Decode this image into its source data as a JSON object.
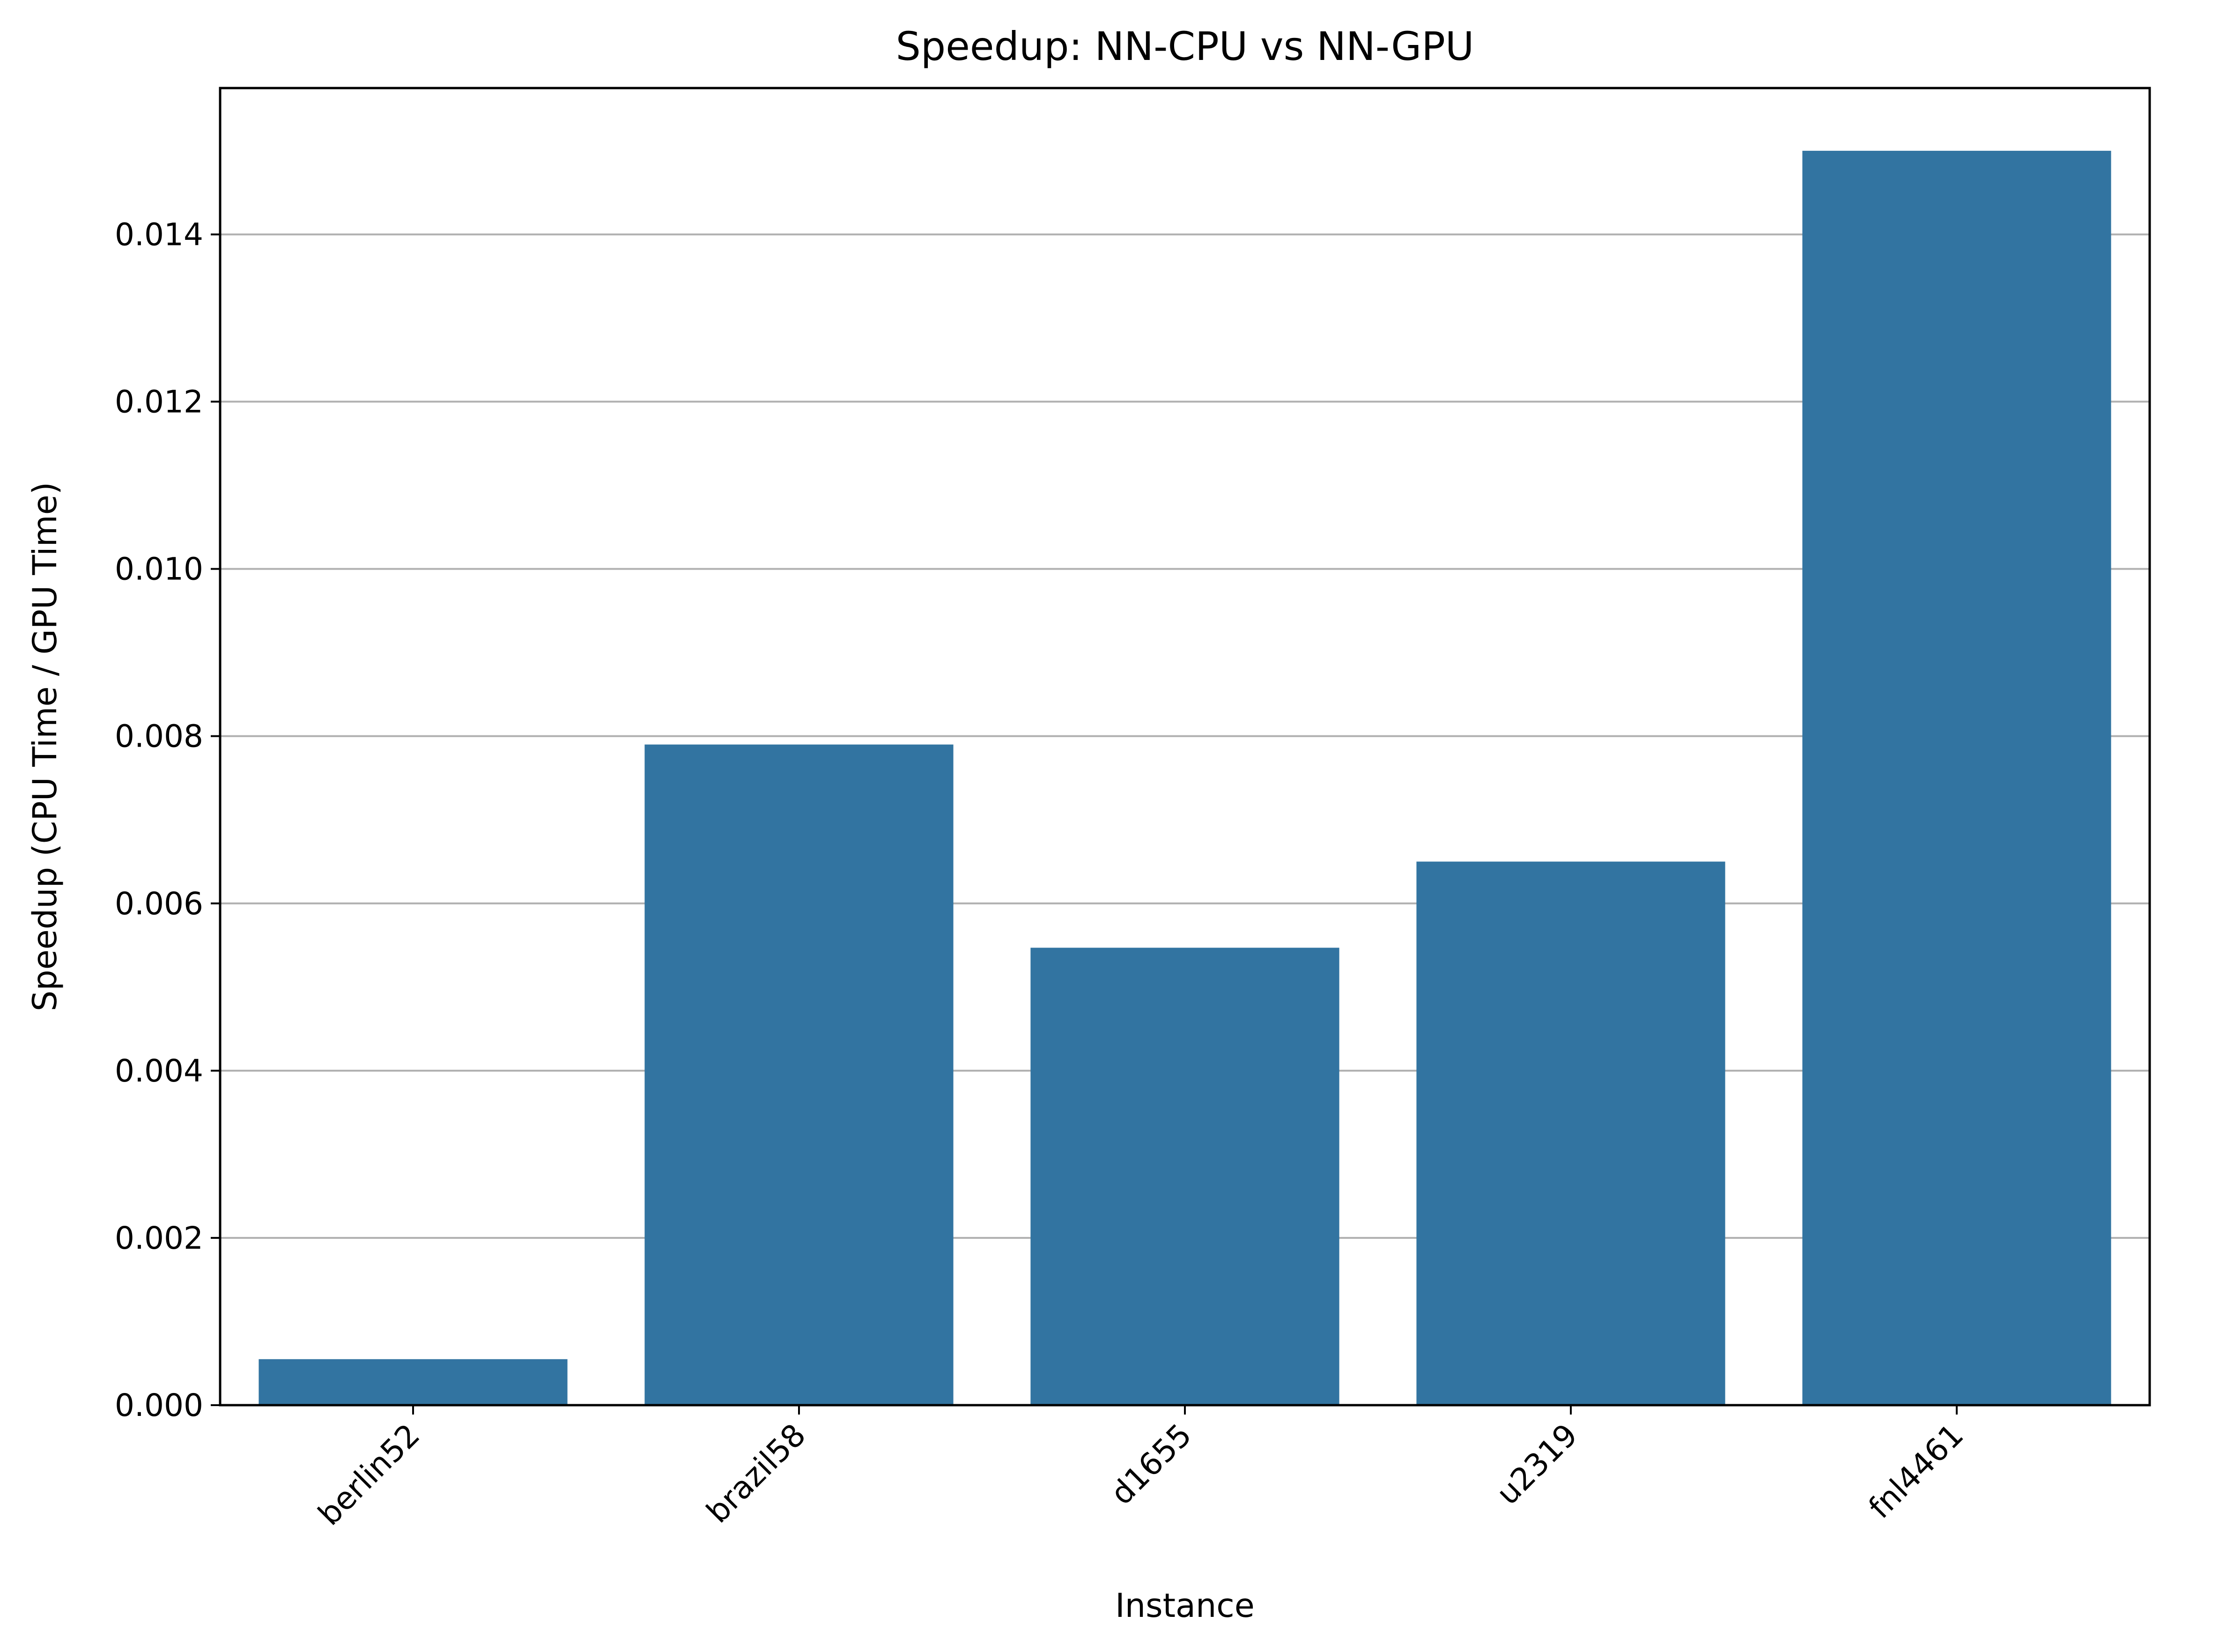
{
  "chart_data": {
    "type": "bar",
    "title": "Speedup: NN-CPU vs NN-GPU",
    "xlabel": "Instance",
    "ylabel": "Speedup (CPU Time / GPU Time)",
    "categories": [
      "berlin52",
      "brazil58",
      "d1655",
      "u2319",
      "fnl4461"
    ],
    "values": [
      0.00055,
      0.0079,
      0.00547,
      0.0065,
      0.015
    ],
    "ylim": [
      0,
      0.01575
    ],
    "yticks": [
      0.0,
      0.002,
      0.004,
      0.006,
      0.008,
      0.01,
      0.012,
      0.014
    ],
    "ytick_labels": [
      "0.000",
      "0.002",
      "0.004",
      "0.006",
      "0.008",
      "0.010",
      "0.012",
      "0.014"
    ],
    "grid": "y-major",
    "legend": "none",
    "x_tick_rotation": "45 degrees",
    "colors": {
      "bar": "#3274a1",
      "grid": "#b0b0b0",
      "axis": "#000000",
      "background": "#ffffff"
    }
  }
}
